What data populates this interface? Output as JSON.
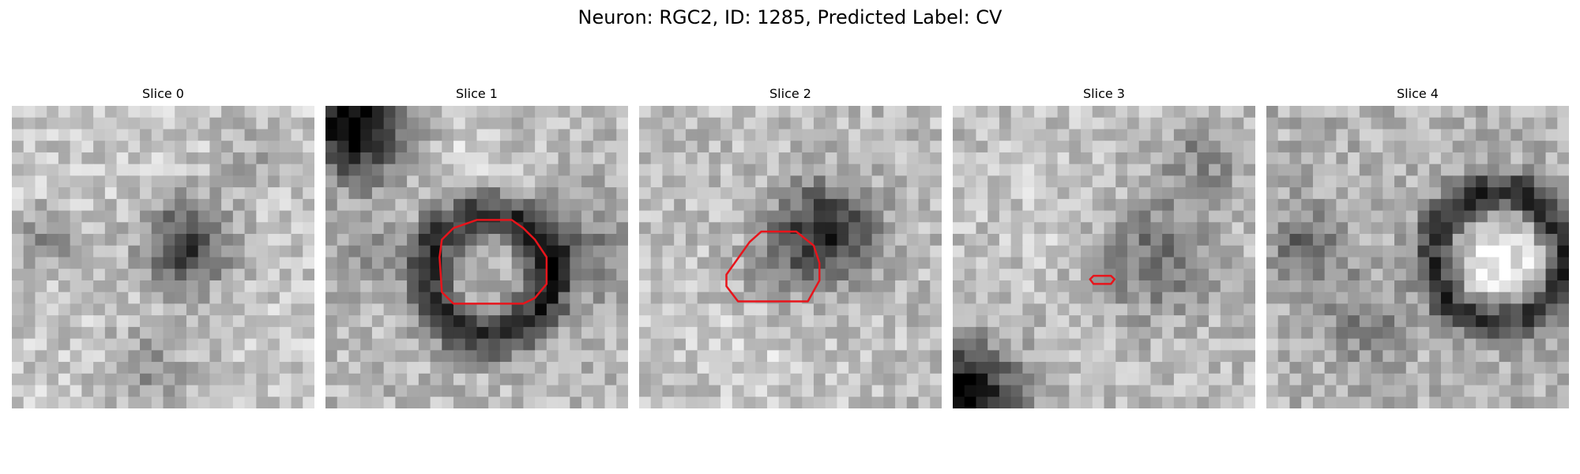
{
  "figure": {
    "title": "Neuron: RGC2, ID: 1285, Predicted Label: CV"
  },
  "panels": [
    {
      "title": "Slice 0",
      "overlay": "none"
    },
    {
      "title": "Slice 1",
      "overlay": "large-ring"
    },
    {
      "title": "Slice 2",
      "overlay": "medium-outline"
    },
    {
      "title": "Slice 3",
      "overlay": "small-outline"
    },
    {
      "title": "Slice 4",
      "overlay": "none"
    }
  ],
  "colors": {
    "contour": "#e8141b",
    "background": "#ffffff"
  }
}
